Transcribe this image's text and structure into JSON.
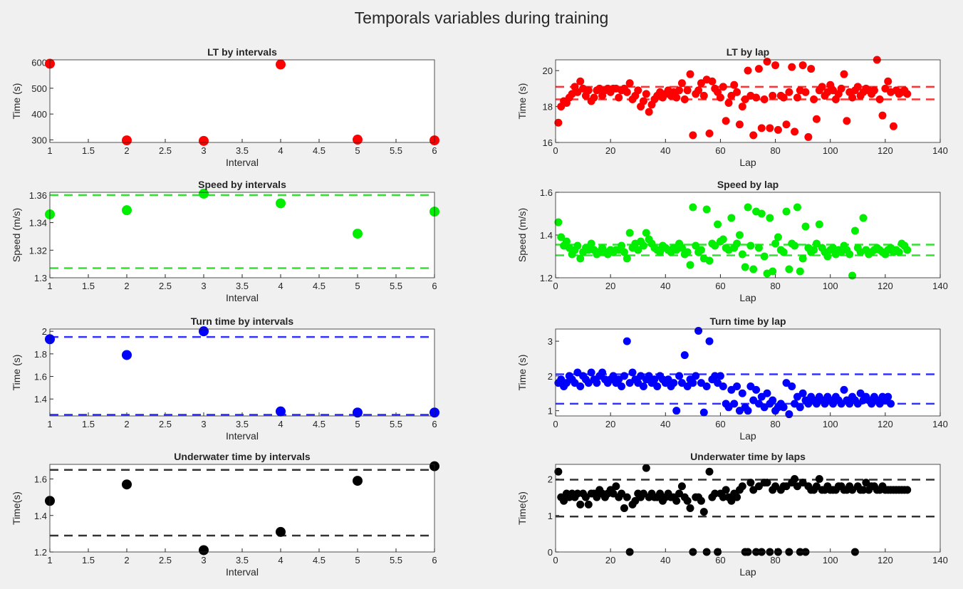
{
  "figure": {
    "title": "Temporals variables during training"
  },
  "chart_data": [
    {
      "type": "scatter",
      "title": "LT by intervals",
      "xlabel": "Interval",
      "ylabel": "Time (s)",
      "xlim": [
        1,
        6
      ],
      "ylim": [
        290,
        610
      ],
      "xticks": [
        1,
        1.5,
        2,
        2.5,
        3,
        3.5,
        4,
        4.5,
        5,
        5.5,
        6
      ],
      "yticks": [
        300,
        400,
        500,
        600
      ],
      "color": "#ff0000",
      "x": [
        1,
        2,
        3,
        4,
        5,
        6
      ],
      "y": [
        595,
        298,
        296,
        592,
        301,
        298
      ],
      "reference_lines": []
    },
    {
      "type": "scatter",
      "title": "LT by lap",
      "xlabel": "Lap",
      "ylabel": "Time (s)",
      "xlim": [
        0,
        140
      ],
      "ylim": [
        16,
        20.6
      ],
      "xticks": [
        0,
        20,
        40,
        60,
        80,
        100,
        120,
        140
      ],
      "yticks": [
        16,
        18,
        20
      ],
      "color": "#ff0000",
      "x": [
        1,
        2,
        3,
        4,
        5,
        6,
        7,
        8,
        9,
        10,
        11,
        12,
        13,
        14,
        15,
        16,
        17,
        18,
        19,
        20,
        21,
        22,
        23,
        24,
        25,
        26,
        27,
        28,
        29,
        30,
        31,
        32,
        33,
        34,
        35,
        36,
        37,
        38,
        39,
        40,
        41,
        42,
        43,
        44,
        45,
        46,
        47,
        48,
        49,
        50,
        51,
        52,
        53,
        54,
        55,
        56,
        57,
        58,
        59,
        60,
        61,
        62,
        63,
        64,
        65,
        66,
        67,
        68,
        69,
        70,
        71,
        72,
        73,
        74,
        75,
        76,
        77,
        78,
        79,
        80,
        81,
        82,
        83,
        84,
        85,
        86,
        87,
        88,
        89,
        90,
        91,
        92,
        93,
        94,
        95,
        96,
        97,
        98,
        99,
        100,
        101,
        102,
        103,
        104,
        105,
        106,
        107,
        108,
        109,
        110,
        111,
        112,
        113,
        114,
        115,
        116,
        117,
        118,
        119,
        120,
        121,
        122,
        123,
        124,
        125,
        126,
        127,
        128
      ],
      "y": [
        17.1,
        18.0,
        18.3,
        18.2,
        18.5,
        18.7,
        19.1,
        18.8,
        19.4,
        19.0,
        18.6,
        18.9,
        18.3,
        18.5,
        18.9,
        19.0,
        18.6,
        18.9,
        19.0,
        18.8,
        19.0,
        19.0,
        18.5,
        18.9,
        19.0,
        18.8,
        19.3,
        18.4,
        18.6,
        18.9,
        18.0,
        18.3,
        18.7,
        17.7,
        18.1,
        18.4,
        18.6,
        18.8,
        18.5,
        18.7,
        18.9,
        18.6,
        18.8,
        18.5,
        18.9,
        19.3,
        18.4,
        18.9,
        19.8,
        16.4,
        18.7,
        18.9,
        19.3,
        18.6,
        19.5,
        16.5,
        19.4,
        19.0,
        18.8,
        18.5,
        19.1,
        17.2,
        18.2,
        18.6,
        19.2,
        18.8,
        17.0,
        18.0,
        18.4,
        20.0,
        18.6,
        16.4,
        18.5,
        20.1,
        16.8,
        18.4,
        20.5,
        16.8,
        18.6,
        20.3,
        16.7,
        18.6,
        18.5,
        17.0,
        18.8,
        20.2,
        16.6,
        18.5,
        18.9,
        20.3,
        18.8,
        16.3,
        20.1,
        18.4,
        17.3,
        18.9,
        19.1,
        18.6,
        18.8,
        19.2,
        18.9,
        18.4,
        18.7,
        19.0,
        19.8,
        17.2,
        18.8,
        18.5,
        18.9,
        19.1,
        18.6,
        18.8,
        19.0,
        18.9,
        18.7,
        18.9,
        20.6,
        18.4,
        17.5,
        19.0,
        19.4,
        18.8,
        16.9,
        18.9,
        18.7,
        18.8,
        18.9,
        18.7
      ],
      "reference_lines": [
        19.1,
        18.4
      ]
    },
    {
      "type": "scatter",
      "title": "Speed by intervals",
      "xlabel": "Interval",
      "ylabel": "Speed (m/s)",
      "xlim": [
        1,
        6
      ],
      "ylim": [
        1.3,
        1.362
      ],
      "xticks": [
        1,
        1.5,
        2,
        2.5,
        3,
        3.5,
        4,
        4.5,
        5,
        5.5,
        6
      ],
      "yticks": [
        1.3,
        1.32,
        1.34,
        1.36
      ],
      "color": "#00ee00",
      "x": [
        1,
        2,
        3,
        4,
        5,
        6
      ],
      "y": [
        1.346,
        1.349,
        1.361,
        1.354,
        1.332,
        1.348
      ],
      "reference_lines": [
        1.36,
        1.307
      ]
    },
    {
      "type": "scatter",
      "title": "Speed by lap",
      "xlabel": "Lap",
      "ylabel": "Speed (m/s)",
      "xlim": [
        0,
        140
      ],
      "ylim": [
        1.2,
        1.6
      ],
      "xticks": [
        0,
        20,
        40,
        60,
        80,
        100,
        120,
        140
      ],
      "yticks": [
        1.2,
        1.4,
        1.6
      ],
      "color": "#00ee00",
      "x": [
        1,
        2,
        3,
        4,
        5,
        6,
        7,
        8,
        9,
        10,
        11,
        12,
        13,
        14,
        15,
        16,
        17,
        18,
        19,
        20,
        21,
        22,
        23,
        24,
        25,
        26,
        27,
        28,
        29,
        30,
        31,
        32,
        33,
        34,
        35,
        36,
        37,
        38,
        39,
        40,
        41,
        42,
        43,
        44,
        45,
        46,
        47,
        48,
        49,
        50,
        51,
        52,
        53,
        54,
        55,
        56,
        57,
        58,
        59,
        60,
        61,
        62,
        63,
        64,
        65,
        66,
        67,
        68,
        69,
        70,
        71,
        72,
        73,
        74,
        75,
        76,
        77,
        78,
        79,
        80,
        81,
        82,
        83,
        84,
        85,
        86,
        87,
        88,
        89,
        90,
        91,
        92,
        93,
        94,
        95,
        96,
        97,
        98,
        99,
        100,
        101,
        102,
        103,
        104,
        105,
        106,
        107,
        108,
        109,
        110,
        111,
        112,
        113,
        114,
        115,
        116,
        117,
        118,
        119,
        120,
        121,
        122,
        123,
        124,
        125,
        126,
        127,
        128
      ],
      "y": [
        1.46,
        1.39,
        1.35,
        1.37,
        1.34,
        1.31,
        1.33,
        1.35,
        1.29,
        1.32,
        1.34,
        1.33,
        1.36,
        1.33,
        1.31,
        1.32,
        1.34,
        1.32,
        1.31,
        1.33,
        1.32,
        1.33,
        1.33,
        1.35,
        1.32,
        1.29,
        1.41,
        1.34,
        1.36,
        1.33,
        1.37,
        1.35,
        1.41,
        1.38,
        1.36,
        1.34,
        1.33,
        1.32,
        1.35,
        1.34,
        1.33,
        1.32,
        1.34,
        1.33,
        1.36,
        1.34,
        1.31,
        1.32,
        1.26,
        1.53,
        1.35,
        1.32,
        1.33,
        1.29,
        1.52,
        1.28,
        1.36,
        1.35,
        1.45,
        1.37,
        1.38,
        1.34,
        1.33,
        1.48,
        1.34,
        1.36,
        1.4,
        1.31,
        1.25,
        1.53,
        1.35,
        1.24,
        1.51,
        1.34,
        1.5,
        1.3,
        1.22,
        1.48,
        1.23,
        1.36,
        1.39,
        1.33,
        1.32,
        1.51,
        1.24,
        1.36,
        1.35,
        1.53,
        1.23,
        1.29,
        1.44,
        1.34,
        1.32,
        1.33,
        1.36,
        1.45,
        1.34,
        1.32,
        1.3,
        1.33,
        1.34,
        1.31,
        1.33,
        1.32,
        1.35,
        1.33,
        1.31,
        1.21,
        1.42,
        1.34,
        1.32,
        1.48,
        1.33,
        1.31,
        1.32,
        1.33,
        1.34,
        1.33,
        1.32,
        1.31,
        1.33,
        1.34,
        1.32,
        1.33,
        1.32,
        1.36,
        1.35,
        1.33
      ],
      "reference_lines": [
        1.355,
        1.305
      ]
    },
    {
      "type": "scatter",
      "title": "Turn time by intervals",
      "xlabel": "Interval",
      "ylabel": "Time (s)",
      "xlim": [
        1,
        6
      ],
      "ylim": [
        1.25,
        2.02
      ],
      "xticks": [
        1,
        1.5,
        2,
        2.5,
        3,
        3.5,
        4,
        4.5,
        5,
        5.5,
        6
      ],
      "yticks": [
        1.4,
        1.6,
        1.8,
        2
      ],
      "color": "#0000ff",
      "x": [
        1,
        2,
        3,
        4,
        5,
        6
      ],
      "y": [
        1.93,
        1.79,
        2.0,
        1.29,
        1.28,
        1.28
      ],
      "reference_lines": [
        1.95,
        1.26
      ]
    },
    {
      "type": "scatter",
      "title": "Turn time by lap",
      "xlabel": "Lap",
      "ylabel": "Time (s)",
      "xlim": [
        0,
        140
      ],
      "ylim": [
        0.85,
        3.35
      ],
      "xticks": [
        0,
        20,
        40,
        60,
        80,
        100,
        120,
        140
      ],
      "yticks": [
        1,
        2,
        3
      ],
      "color": "#0000ff",
      "x": [
        1,
        2,
        3,
        4,
        5,
        6,
        7,
        8,
        9,
        10,
        11,
        12,
        13,
        14,
        15,
        16,
        17,
        18,
        19,
        20,
        21,
        22,
        23,
        24,
        25,
        26,
        27,
        28,
        29,
        30,
        31,
        32,
        33,
        34,
        35,
        36,
        37,
        38,
        39,
        40,
        41,
        42,
        43,
        44,
        45,
        46,
        47,
        48,
        49,
        50,
        51,
        52,
        53,
        54,
        55,
        56,
        57,
        58,
        59,
        60,
        61,
        62,
        63,
        64,
        65,
        66,
        67,
        68,
        69,
        70,
        71,
        72,
        73,
        74,
        75,
        76,
        77,
        78,
        79,
        80,
        81,
        82,
        83,
        84,
        85,
        86,
        87,
        88,
        89,
        90,
        91,
        92,
        93,
        94,
        95,
        96,
        97,
        98,
        99,
        100,
        101,
        102,
        103,
        104,
        105,
        106,
        107,
        108,
        109,
        110,
        111,
        112,
        113,
        114,
        115,
        116,
        117,
        118,
        119,
        120,
        121,
        122
      ],
      "y": [
        1.8,
        1.9,
        1.7,
        1.8,
        2.0,
        1.9,
        1.8,
        2.1,
        1.7,
        2.0,
        1.9,
        1.8,
        2.1,
        1.9,
        1.8,
        2.0,
        2.1,
        1.9,
        1.8,
        1.9,
        2.0,
        1.8,
        1.9,
        1.7,
        2.0,
        3.0,
        1.8,
        2.1,
        1.9,
        1.8,
        2.0,
        1.7,
        1.9,
        2.0,
        1.8,
        1.9,
        1.7,
        2.0,
        1.9,
        1.8,
        1.9,
        1.7,
        1.8,
        1.0,
        2.0,
        1.8,
        2.6,
        1.7,
        1.9,
        1.8,
        2.0,
        3.3,
        1.8,
        0.95,
        1.7,
        3.0,
        1.9,
        2.0,
        1.8,
        2.0,
        1.7,
        1.2,
        1.1,
        1.6,
        1.2,
        1.7,
        1.0,
        1.5,
        1.1,
        1.0,
        1.7,
        1.3,
        1.6,
        1.2,
        1.4,
        1.1,
        1.5,
        1.2,
        1.3,
        1.0,
        1.1,
        1.2,
        1.1,
        1.8,
        0.9,
        1.7,
        1.2,
        1.4,
        1.1,
        1.5,
        1.3,
        1.2,
        1.4,
        1.3,
        1.2,
        1.4,
        1.3,
        1.2,
        1.4,
        1.3,
        1.2,
        1.4,
        1.3,
        1.2,
        1.6,
        1.3,
        1.2,
        1.4,
        1.3,
        1.2,
        1.5,
        1.3,
        1.4,
        1.3,
        1.2,
        1.4,
        1.3,
        1.2,
        1.4,
        1.3,
        1.4,
        1.2
      ],
      "reference_lines": [
        2.05,
        1.2
      ]
    },
    {
      "type": "scatter",
      "title": "Underwater time by intervals",
      "xlabel": "Interval",
      "ylabel": "Time(s)",
      "xlim": [
        1,
        6
      ],
      "ylim": [
        1.2,
        1.68
      ],
      "xticks": [
        1,
        1.5,
        2,
        2.5,
        3,
        3.5,
        4,
        4.5,
        5,
        5.5,
        6
      ],
      "yticks": [
        1.2,
        1.4,
        1.6
      ],
      "color": "#000000",
      "x": [
        1,
        2,
        3,
        4,
        5,
        6
      ],
      "y": [
        1.48,
        1.57,
        1.21,
        1.31,
        1.59,
        1.67
      ],
      "reference_lines": [
        1.65,
        1.29
      ]
    },
    {
      "type": "scatter",
      "title": "Underwater time by laps",
      "xlabel": "Lap",
      "ylabel": "Time(s)",
      "xlim": [
        0,
        140
      ],
      "ylim": [
        0,
        2.4
      ],
      "xticks": [
        0,
        20,
        40,
        60,
        80,
        100,
        120,
        140
      ],
      "yticks": [
        0,
        1,
        2
      ],
      "color": "#000000",
      "x": [
        1,
        2,
        3,
        4,
        5,
        6,
        7,
        8,
        9,
        10,
        11,
        12,
        13,
        14,
        15,
        16,
        17,
        18,
        19,
        20,
        21,
        22,
        23,
        24,
        25,
        26,
        27,
        28,
        29,
        30,
        31,
        32,
        33,
        34,
        35,
        36,
        37,
        38,
        39,
        40,
        41,
        42,
        43,
        44,
        45,
        46,
        47,
        48,
        49,
        50,
        51,
        52,
        53,
        54,
        55,
        56,
        57,
        58,
        59,
        60,
        61,
        62,
        63,
        64,
        65,
        66,
        67,
        68,
        69,
        70,
        71,
        72,
        73,
        74,
        75,
        76,
        77,
        78,
        79,
        80,
        81,
        82,
        83,
        84,
        85,
        86,
        87,
        88,
        89,
        90,
        91,
        92,
        93,
        94,
        95,
        96,
        97,
        98,
        99,
        100,
        101,
        102,
        103,
        104,
        105,
        106,
        107,
        108,
        109,
        110,
        111,
        112,
        113,
        114,
        115,
        116,
        117,
        118,
        119,
        120,
        121,
        122,
        123,
        124,
        125,
        126,
        127,
        128
      ],
      "y": [
        2.2,
        1.5,
        1.4,
        1.6,
        1.5,
        1.6,
        1.5,
        1.6,
        1.3,
        1.6,
        1.5,
        1.3,
        1.6,
        1.6,
        1.5,
        1.7,
        1.6,
        1.5,
        1.6,
        1.7,
        1.6,
        1.8,
        1.5,
        1.6,
        1.2,
        1.5,
        0.0,
        1.3,
        1.4,
        1.6,
        1.5,
        1.6,
        2.3,
        1.5,
        1.6,
        1.5,
        1.5,
        1.6,
        1.4,
        1.5,
        1.6,
        1.5,
        1.5,
        1.4,
        1.6,
        1.8,
        1.5,
        1.4,
        1.2,
        0.0,
        1.5,
        1.5,
        1.4,
        1.1,
        0.0,
        2.2,
        1.5,
        1.6,
        0.0,
        1.6,
        1.5,
        1.7,
        1.5,
        1.4,
        1.6,
        1.5,
        1.7,
        1.8,
        0.0,
        0.0,
        1.9,
        1.7,
        0.0,
        1.8,
        0.0,
        1.9,
        1.9,
        0.0,
        1.7,
        1.8,
        0.0,
        1.7,
        1.8,
        1.8,
        0.0,
        1.9,
        2.0,
        1.8,
        0.0,
        1.9,
        0.0,
        1.8,
        1.7,
        1.7,
        1.8,
        2.0,
        1.7,
        1.7,
        1.8,
        1.7,
        1.7,
        1.7,
        1.8,
        1.8,
        1.7,
        1.7,
        1.8,
        1.7,
        0.0,
        1.8,
        1.7,
        1.7,
        1.9,
        1.7,
        1.8,
        1.8,
        1.7,
        1.7,
        1.8,
        1.7,
        1.7,
        1.7,
        1.7,
        1.7,
        1.7,
        1.7,
        1.7,
        1.7
      ],
      "reference_lines": [
        1.98,
        0.97
      ]
    }
  ]
}
